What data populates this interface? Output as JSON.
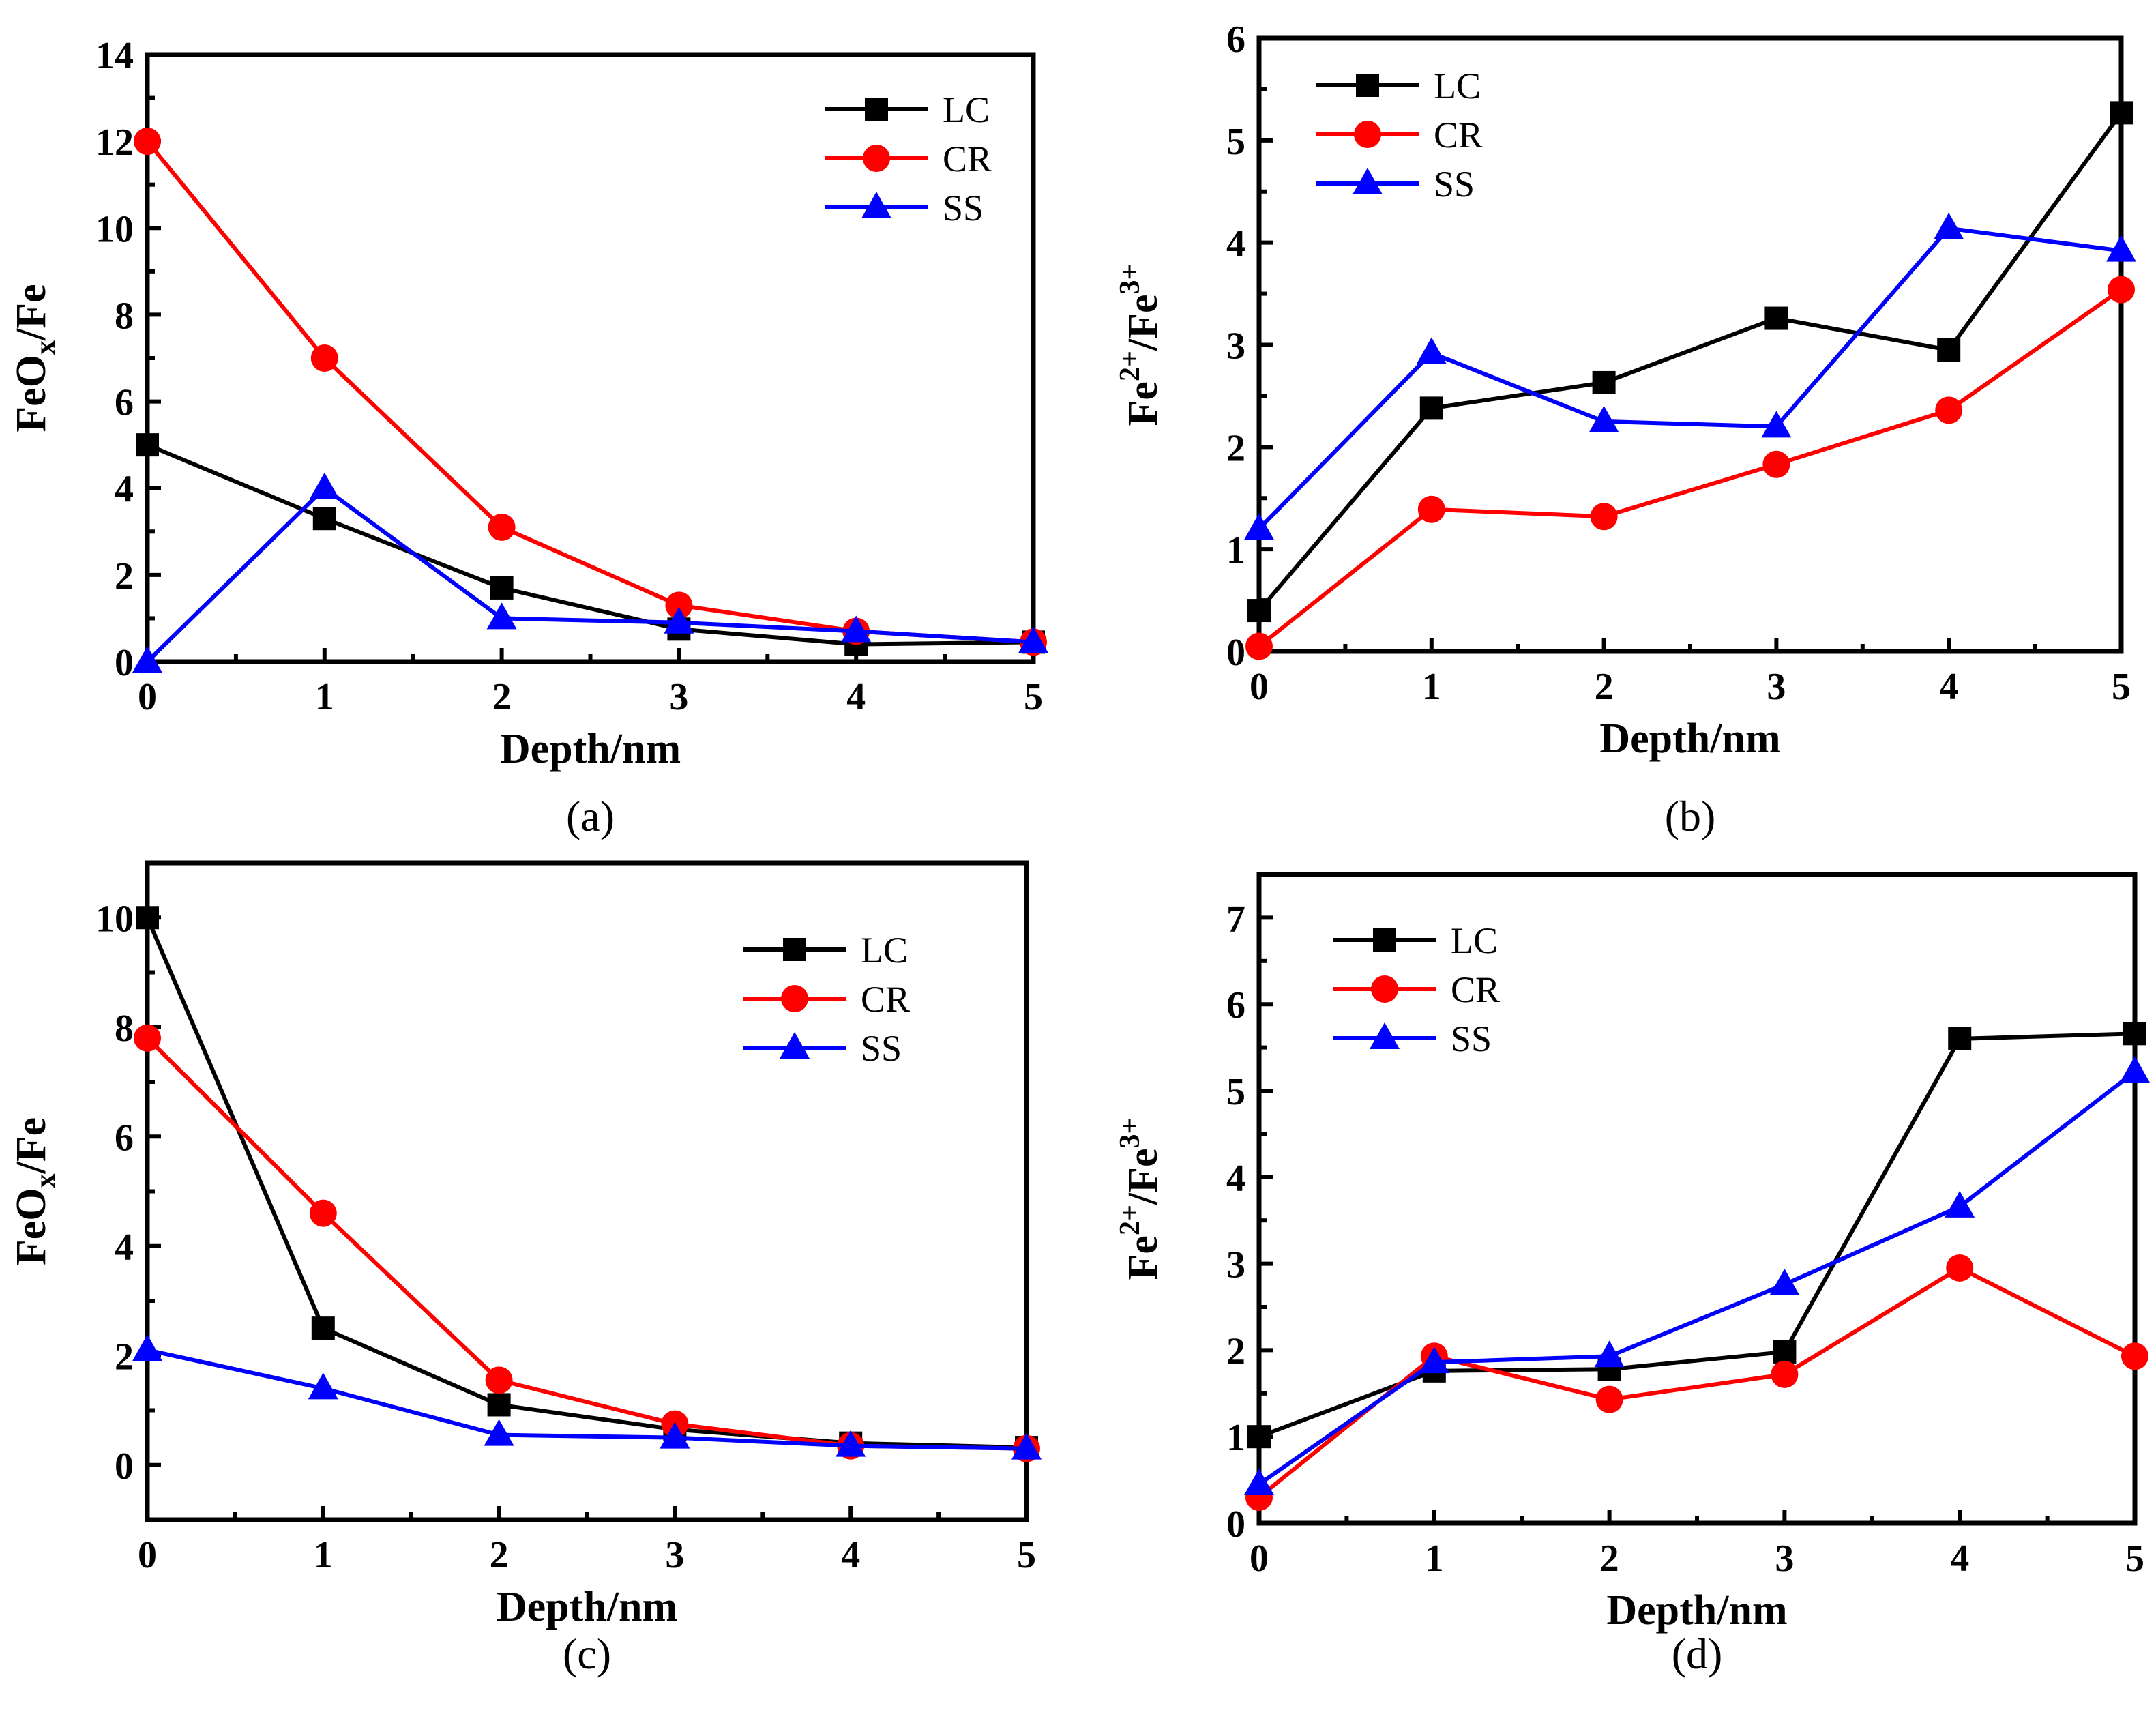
{
  "chart_data": [
    {
      "type": "line",
      "panel_label": "(a)",
      "xlabel": "Depth/nm",
      "ylabel": {
        "base": "FeO",
        "sub": "x",
        "rest": "/Fe"
      },
      "xlim": [
        0,
        5
      ],
      "ylim": [
        0,
        14
      ],
      "xticks": [
        0,
        1,
        2,
        3,
        4,
        5
      ],
      "yticks": [
        0,
        2,
        4,
        6,
        8,
        10,
        12,
        14
      ],
      "legend_position": "top-right",
      "x": [
        0,
        1,
        2,
        3,
        4,
        5
      ],
      "series": [
        {
          "name": "LC",
          "color": "#000000",
          "marker": "square",
          "values": [
            5.0,
            3.3,
            1.7,
            0.75,
            0.4,
            0.45
          ]
        },
        {
          "name": "CR",
          "color": "#ff0000",
          "marker": "circle",
          "values": [
            12.0,
            7.0,
            3.1,
            1.3,
            0.7,
            0.45
          ]
        },
        {
          "name": "SS",
          "color": "#0000ff",
          "marker": "triangle",
          "values": [
            0.0,
            4.0,
            1.0,
            0.9,
            0.7,
            0.45
          ]
        }
      ]
    },
    {
      "type": "line",
      "panel_label": "(b)",
      "xlabel": "Depth/nm",
      "ylabel": {
        "base": "Fe",
        "sup1": "2+",
        "mid": "/Fe",
        "sup2": "3+"
      },
      "xlim": [
        0,
        5
      ],
      "ylim": [
        0,
        6
      ],
      "xticks": [
        0,
        1,
        2,
        3,
        4,
        5
      ],
      "yticks": [
        0,
        1,
        2,
        3,
        4,
        5,
        6
      ],
      "legend_position": "top-left",
      "x": [
        0,
        1,
        2,
        3,
        4,
        5
      ],
      "series": [
        {
          "name": "LC",
          "color": "#000000",
          "marker": "square",
          "values": [
            0.4,
            2.38,
            2.63,
            3.26,
            2.95,
            5.27
          ]
        },
        {
          "name": "CR",
          "color": "#ff0000",
          "marker": "circle",
          "values": [
            0.05,
            1.39,
            1.32,
            1.83,
            2.36,
            3.54
          ]
        },
        {
          "name": "SS",
          "color": "#0000ff",
          "marker": "triangle",
          "values": [
            1.2,
            2.92,
            2.25,
            2.2,
            4.14,
            3.92
          ]
        }
      ]
    },
    {
      "type": "line",
      "panel_label": "(c)",
      "xlabel": "Depth/nm",
      "ylabel": {
        "base": "FeO",
        "sub": "x",
        "rest": "/Fe"
      },
      "xlim": [
        0,
        5
      ],
      "ylim": [
        -1,
        11
      ],
      "xticks": [
        0,
        1,
        2,
        3,
        4,
        5
      ],
      "yticks": [
        0,
        2,
        4,
        6,
        8,
        10
      ],
      "legend_position": "top-right",
      "x": [
        0,
        1,
        2,
        3,
        4,
        5
      ],
      "series": [
        {
          "name": "LC",
          "color": "#000000",
          "marker": "square",
          "values": [
            10.0,
            2.5,
            1.1,
            0.65,
            0.4,
            0.32
          ]
        },
        {
          "name": "CR",
          "color": "#ff0000",
          "marker": "circle",
          "values": [
            7.8,
            4.6,
            1.55,
            0.75,
            0.35,
            0.3
          ]
        },
        {
          "name": "SS",
          "color": "#0000ff",
          "marker": "triangle",
          "values": [
            2.1,
            1.4,
            0.55,
            0.5,
            0.35,
            0.3
          ]
        }
      ]
    },
    {
      "type": "line",
      "panel_label": "(d)",
      "xlabel": "Depth/nm",
      "ylabel": {
        "base": "Fe",
        "sup1": "2+",
        "mid": "/Fe",
        "sup2": "3+"
      },
      "xlim": [
        0,
        5
      ],
      "ylim": [
        0,
        7.5
      ],
      "xticks": [
        0,
        1,
        2,
        3,
        4,
        5
      ],
      "yticks": [
        0,
        1,
        2,
        3,
        4,
        5,
        6,
        7
      ],
      "legend_position": "top-left",
      "x": [
        0,
        1,
        2,
        3,
        4,
        5
      ],
      "series": [
        {
          "name": "LC",
          "color": "#000000",
          "marker": "square",
          "values": [
            1.0,
            1.76,
            1.78,
            1.98,
            5.6,
            5.66
          ]
        },
        {
          "name": "CR",
          "color": "#ff0000",
          "marker": "circle",
          "values": [
            0.3,
            1.93,
            1.43,
            1.72,
            2.95,
            1.93
          ]
        },
        {
          "name": "SS",
          "color": "#0000ff",
          "marker": "triangle",
          "values": [
            0.45,
            1.86,
            1.93,
            2.76,
            3.66,
            5.22
          ]
        }
      ]
    }
  ]
}
